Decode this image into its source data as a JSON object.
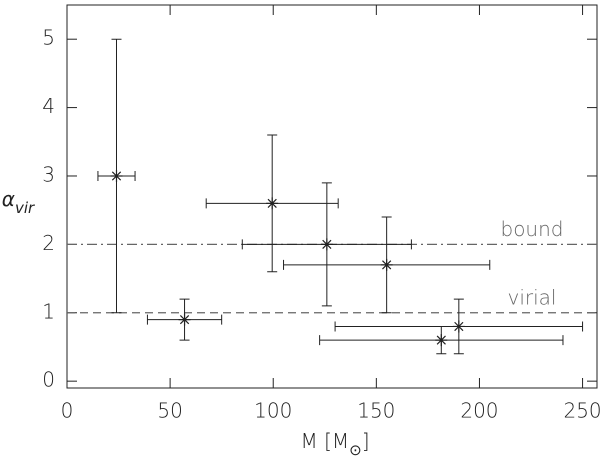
{
  "chart_data": {
    "type": "errorbar-scatter",
    "xlabel_parts": [
      "M [M",
      "⊙",
      "]"
    ],
    "ylabel": "α",
    "ylabel_sub": "vir",
    "xlim": [
      0,
      257
    ],
    "ylim": [
      -0.1,
      5.5
    ],
    "xticks": [
      0,
      50,
      100,
      150,
      200,
      250
    ],
    "yticks": [
      0,
      1,
      2,
      3,
      4,
      5
    ],
    "series": [
      {
        "color": "#222222",
        "x": [
          24,
          57,
          99.5,
          126,
          155,
          181.5,
          190
        ],
        "values": [
          3.0,
          0.9,
          2.6,
          2.0,
          1.7,
          0.6,
          0.8
        ],
        "xerr": [
          9,
          18,
          32,
          41,
          50,
          59,
          60
        ],
        "yerr": [
          2.0,
          0.3,
          1.0,
          0.9,
          0.7,
          0.2,
          0.4
        ]
      }
    ],
    "reference_lines": [
      {
        "y": 2,
        "label": "bound",
        "style": "dashdot",
        "color": "#666666"
      },
      {
        "y": 1,
        "label": "virial",
        "style": "dashed",
        "color": "#666666"
      }
    ]
  }
}
